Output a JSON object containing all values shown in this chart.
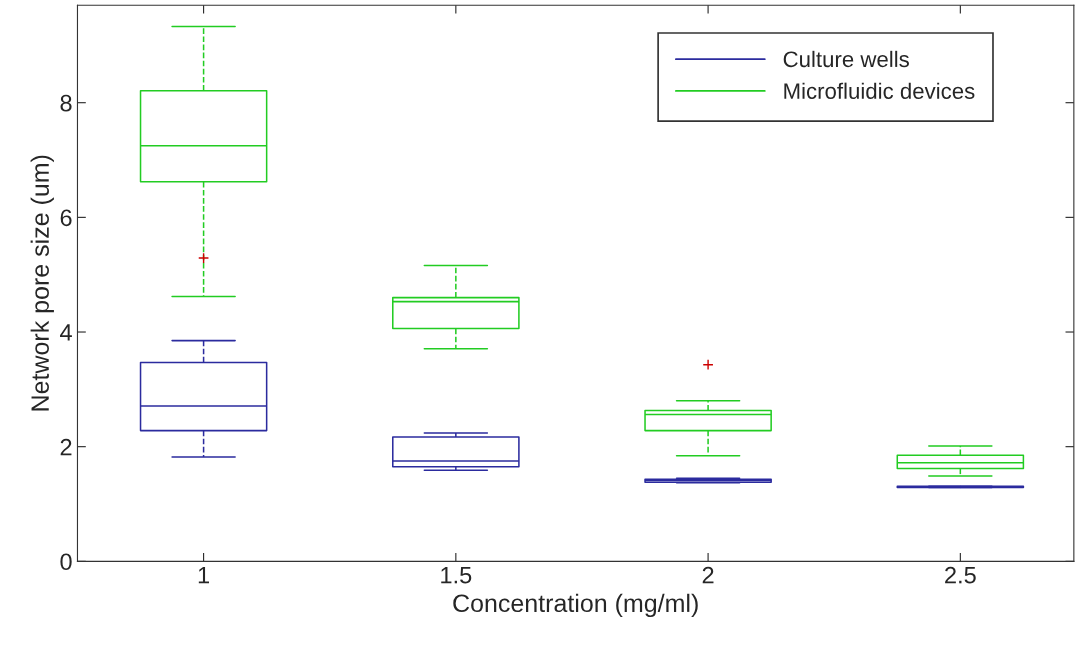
{
  "chart_data": {
    "type": "box",
    "xlabel": "Concentration (mg/ml)",
    "ylabel": "Network pore size (um)",
    "categories": [
      "1",
      "1.5",
      "2",
      "2.5"
    ],
    "ylim": [
      0,
      9.7
    ],
    "yticks": [
      0,
      2,
      4,
      6,
      8
    ],
    "grid": false,
    "legend": "top right",
    "line_style": "dashed",
    "series": [
      {
        "name": "Culture wells",
        "color": "#2b2b9e",
        "boxes": [
          {
            "low": 1.82,
            "q1": 2.28,
            "median": 2.71,
            "q3": 3.47,
            "high": 3.85
          },
          {
            "low": 1.59,
            "q1": 1.65,
            "median": 1.75,
            "q3": 2.17,
            "high": 2.24
          },
          {
            "low": 1.37,
            "q1": 1.38,
            "median": 1.41,
            "q3": 1.43,
            "high": 1.45
          },
          {
            "low": 1.29,
            "q1": 1.29,
            "median": 1.3,
            "q3": 1.31,
            "high": 1.31
          }
        ]
      },
      {
        "name": "Microfluidic devices",
        "color": "#22cc22",
        "boxes": [
          {
            "low": 4.62,
            "q1": 6.62,
            "median": 7.25,
            "q3": 8.21,
            "high": 9.33,
            "outliers": [
              5.29
            ]
          },
          {
            "low": 3.71,
            "q1": 4.06,
            "median": 4.53,
            "q3": 4.6,
            "high": 5.16
          },
          {
            "low": 1.84,
            "q1": 2.28,
            "median": 2.56,
            "q3": 2.63,
            "high": 2.8,
            "outliers": [
              3.43
            ]
          },
          {
            "low": 1.49,
            "q1": 1.62,
            "median": 1.72,
            "q3": 1.85,
            "high": 2.01
          }
        ]
      }
    ]
  }
}
